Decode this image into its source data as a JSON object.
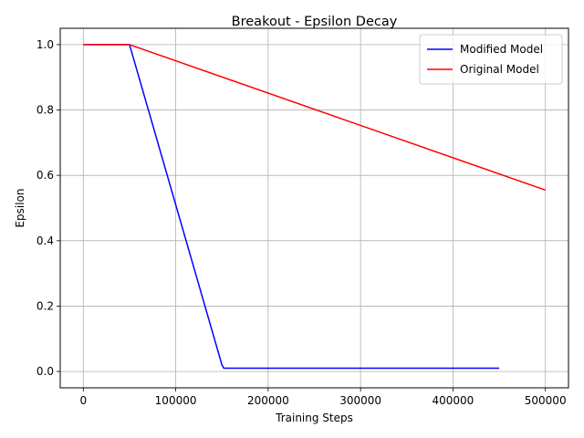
{
  "chart_data": {
    "type": "line",
    "title": "Breakout - Epsilon Decay",
    "xlabel": "Training Steps",
    "ylabel": "Epsilon",
    "xlim": [
      -25000,
      525000
    ],
    "ylim": [
      -0.05,
      1.05
    ],
    "xticks": [
      0,
      100000,
      200000,
      300000,
      400000,
      500000
    ],
    "xtick_labels": [
      "0",
      "100000",
      "200000",
      "300000",
      "400000",
      "500000"
    ],
    "yticks": [
      0.0,
      0.2,
      0.4,
      0.6,
      0.8,
      1.0
    ],
    "ytick_labels": [
      "0.0",
      "0.2",
      "0.4",
      "0.6",
      "0.8",
      "1.0"
    ],
    "grid": true,
    "legend_position": "top-right",
    "series": [
      {
        "name": "Modified Model",
        "color": "#0000ff",
        "x": [
          0,
          50000,
          150000,
          152000,
          450000
        ],
        "y": [
          1.0,
          1.0,
          0.02,
          0.01,
          0.01
        ]
      },
      {
        "name": "Original Model",
        "color": "#ff0000",
        "x": [
          0,
          50000,
          500000
        ],
        "y": [
          1.0,
          1.0,
          0.555
        ]
      }
    ]
  }
}
